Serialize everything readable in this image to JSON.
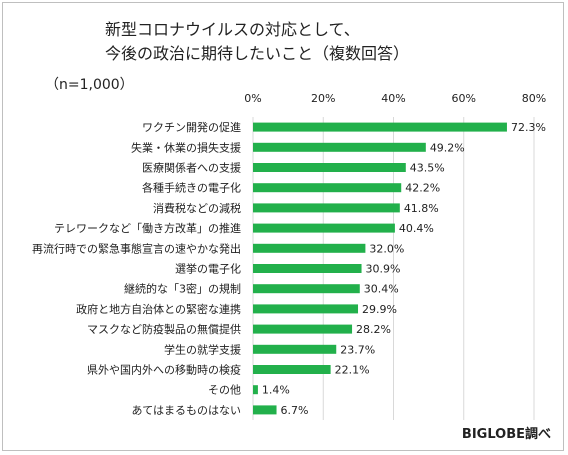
{
  "title_lines": [
    "新型コロナウイルスの対応として、",
    "今後の政治に期待したいこと（複数回答）"
  ],
  "sample_note": "（n=1,000）",
  "credit": "BIGLOBE調べ",
  "colors": {
    "bar": "#22b04b",
    "grid": "#d9d9d9",
    "frame": "#bfbfbf"
  },
  "chart_data": {
    "type": "bar",
    "orientation": "horizontal",
    "title": "新型コロナウイルスの対応として、今後の政治に期待したいこと（複数回答）",
    "xlim": [
      0,
      80
    ],
    "xticks": [
      0,
      20,
      40,
      60,
      80
    ],
    "xtick_labels": [
      "0%",
      "20%",
      "40%",
      "60%",
      "80%"
    ],
    "grid": true,
    "categories": [
      "ワクチン開発の促進",
      "失業・休業の損失支援",
      "医療関係者への支援",
      "各種手続きの電子化",
      "消費税などの減税",
      "テレワークなど「働き方改革」の推進",
      "再流行時での緊急事態宣言の速やかな発出",
      "選挙の電子化",
      "継続的な「3密」の規制",
      "政府と地方自治体との緊密な連携",
      "マスクなど防疫製品の無償提供",
      "学生の就学支援",
      "県外や国内外への移動時の検疫",
      "その他",
      "あてはまるものはない"
    ],
    "values": [
      72.3,
      49.2,
      43.5,
      42.2,
      41.8,
      40.4,
      32.0,
      30.9,
      30.4,
      29.9,
      28.2,
      23.7,
      22.1,
      1.4,
      6.7
    ],
    "value_labels": [
      "72.3%",
      "49.2%",
      "43.5%",
      "42.2%",
      "41.8%",
      "40.4%",
      "32.0%",
      "30.9%",
      "30.4%",
      "29.9%",
      "28.2%",
      "23.7%",
      "22.1%",
      "1.4%",
      "6.7%"
    ]
  }
}
